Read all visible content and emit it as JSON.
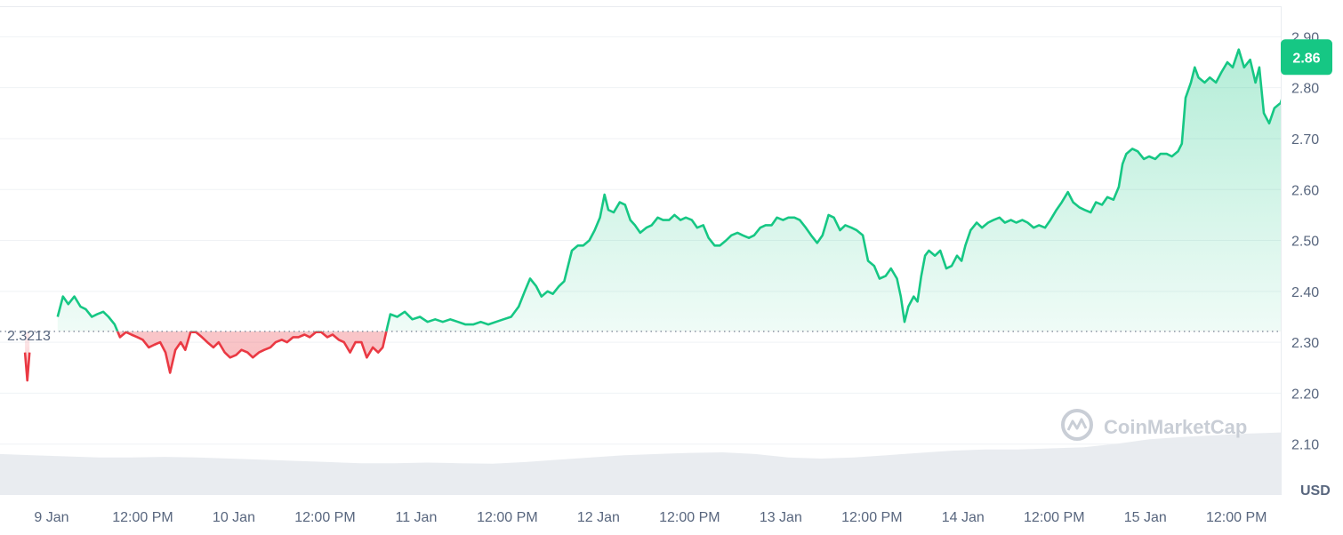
{
  "chart_data": {
    "type": "area",
    "unit": "USD",
    "baseline_label": "2.3213",
    "current_price_label": "2.86",
    "ylim": [
      2.0,
      2.96
    ],
    "yticks": [
      "2.10",
      "2.20",
      "2.30",
      "2.40",
      "2.50",
      "2.60",
      "2.70",
      "2.80",
      "2.90"
    ],
    "xticks": [
      {
        "label": "9 Jan",
        "t": 0
      },
      {
        "label": "12:00 PM",
        "t": 12
      },
      {
        "label": "10 Jan",
        "t": 24
      },
      {
        "label": "12:00 PM",
        "t": 36
      },
      {
        "label": "11 Jan",
        "t": 48
      },
      {
        "label": "12:00 PM",
        "t": 60
      },
      {
        "label": "12 Jan",
        "t": 72
      },
      {
        "label": "12:00 PM",
        "t": 84
      },
      {
        "label": "13 Jan",
        "t": 96
      },
      {
        "label": "12:00 PM",
        "t": 108
      },
      {
        "label": "14 Jan",
        "t": 120
      },
      {
        "label": "12:00 PM",
        "t": 132
      },
      {
        "label": "15 Jan",
        "t": 144
      },
      {
        "label": "12:00 PM",
        "t": 156
      }
    ],
    "series": [
      {
        "points": [
          [
            -3.5,
            2.28
          ],
          [
            -3.2,
            2.225
          ],
          [
            -2.9,
            2.28
          ],
          [
            0.8,
            2.35
          ],
          [
            1.5,
            2.39
          ],
          [
            2.2,
            2.375
          ],
          [
            3.0,
            2.39
          ],
          [
            3.8,
            2.37
          ],
          [
            4.5,
            2.365
          ],
          [
            5.3,
            2.35
          ],
          [
            6.0,
            2.355
          ],
          [
            6.8,
            2.36
          ],
          [
            7.5,
            2.35
          ],
          [
            8.3,
            2.335
          ],
          [
            9.0,
            2.31
          ],
          [
            9.8,
            2.32
          ],
          [
            10.5,
            2.315
          ],
          [
            11.3,
            2.31
          ],
          [
            12.0,
            2.305
          ],
          [
            12.8,
            2.29
          ],
          [
            13.5,
            2.295
          ],
          [
            14.3,
            2.3
          ],
          [
            15.0,
            2.28
          ],
          [
            15.6,
            2.24
          ],
          [
            16.3,
            2.285
          ],
          [
            17.0,
            2.3
          ],
          [
            17.6,
            2.285
          ],
          [
            18.3,
            2.32
          ],
          [
            19.0,
            2.32
          ],
          [
            19.8,
            2.31
          ],
          [
            20.5,
            2.3
          ],
          [
            21.3,
            2.29
          ],
          [
            22.0,
            2.3
          ],
          [
            22.8,
            2.28
          ],
          [
            23.5,
            2.27
          ],
          [
            24.3,
            2.275
          ],
          [
            25.0,
            2.285
          ],
          [
            25.8,
            2.28
          ],
          [
            26.5,
            2.27
          ],
          [
            27.3,
            2.28
          ],
          [
            28.0,
            2.285
          ],
          [
            28.8,
            2.29
          ],
          [
            29.5,
            2.3
          ],
          [
            30.3,
            2.305
          ],
          [
            31.0,
            2.3
          ],
          [
            31.8,
            2.31
          ],
          [
            32.5,
            2.31
          ],
          [
            33.3,
            2.315
          ],
          [
            34.0,
            2.31
          ],
          [
            34.8,
            2.32
          ],
          [
            35.5,
            2.32
          ],
          [
            36.3,
            2.31
          ],
          [
            37.0,
            2.315
          ],
          [
            37.8,
            2.305
          ],
          [
            38.5,
            2.3
          ],
          [
            39.3,
            2.28
          ],
          [
            40.0,
            2.3
          ],
          [
            40.8,
            2.3
          ],
          [
            41.5,
            2.27
          ],
          [
            42.3,
            2.29
          ],
          [
            43.0,
            2.28
          ],
          [
            43.6,
            2.29
          ],
          [
            44.2,
            2.33
          ],
          [
            44.6,
            2.355
          ],
          [
            45.5,
            2.35
          ],
          [
            46.5,
            2.36
          ],
          [
            47.5,
            2.345
          ],
          [
            48.5,
            2.35
          ],
          [
            49.5,
            2.34
          ],
          [
            50.5,
            2.345
          ],
          [
            51.5,
            2.34
          ],
          [
            52.5,
            2.345
          ],
          [
            53.5,
            2.34
          ],
          [
            54.5,
            2.335
          ],
          [
            55.5,
            2.335
          ],
          [
            56.5,
            2.34
          ],
          [
            57.5,
            2.335
          ],
          [
            58.5,
            2.34
          ],
          [
            59.5,
            2.345
          ],
          [
            60.5,
            2.35
          ],
          [
            61.5,
            2.37
          ],
          [
            62.3,
            2.4
          ],
          [
            63.0,
            2.425
          ],
          [
            63.8,
            2.41
          ],
          [
            64.5,
            2.39
          ],
          [
            65.3,
            2.4
          ],
          [
            66.0,
            2.395
          ],
          [
            66.8,
            2.41
          ],
          [
            67.5,
            2.42
          ],
          [
            68.0,
            2.45
          ],
          [
            68.5,
            2.48
          ],
          [
            69.3,
            2.49
          ],
          [
            70.0,
            2.49
          ],
          [
            70.8,
            2.5
          ],
          [
            71.5,
            2.52
          ],
          [
            72.2,
            2.545
          ],
          [
            72.8,
            2.59
          ],
          [
            73.3,
            2.56
          ],
          [
            74.0,
            2.555
          ],
          [
            74.8,
            2.575
          ],
          [
            75.5,
            2.57
          ],
          [
            76.2,
            2.54
          ],
          [
            76.8,
            2.53
          ],
          [
            77.5,
            2.515
          ],
          [
            78.3,
            2.525
          ],
          [
            79.0,
            2.53
          ],
          [
            79.8,
            2.545
          ],
          [
            80.5,
            2.54
          ],
          [
            81.3,
            2.54
          ],
          [
            82.0,
            2.55
          ],
          [
            82.8,
            2.54
          ],
          [
            83.5,
            2.545
          ],
          [
            84.3,
            2.54
          ],
          [
            85.0,
            2.525
          ],
          [
            85.8,
            2.53
          ],
          [
            86.5,
            2.505
          ],
          [
            87.3,
            2.49
          ],
          [
            88.0,
            2.49
          ],
          [
            88.8,
            2.5
          ],
          [
            89.5,
            2.51
          ],
          [
            90.3,
            2.515
          ],
          [
            91.0,
            2.51
          ],
          [
            91.8,
            2.505
          ],
          [
            92.5,
            2.51
          ],
          [
            93.3,
            2.525
          ],
          [
            94.0,
            2.53
          ],
          [
            94.8,
            2.53
          ],
          [
            95.5,
            2.545
          ],
          [
            96.3,
            2.54
          ],
          [
            97.0,
            2.545
          ],
          [
            97.8,
            2.545
          ],
          [
            98.5,
            2.54
          ],
          [
            99.3,
            2.525
          ],
          [
            100.0,
            2.51
          ],
          [
            100.8,
            2.495
          ],
          [
            101.5,
            2.51
          ],
          [
            102.3,
            2.55
          ],
          [
            103.0,
            2.545
          ],
          [
            103.8,
            2.52
          ],
          [
            104.5,
            2.53
          ],
          [
            105.3,
            2.525
          ],
          [
            106.0,
            2.52
          ],
          [
            106.8,
            2.51
          ],
          [
            107.5,
            2.46
          ],
          [
            108.3,
            2.45
          ],
          [
            109.0,
            2.425
          ],
          [
            109.8,
            2.43
          ],
          [
            110.5,
            2.445
          ],
          [
            111.3,
            2.425
          ],
          [
            111.8,
            2.39
          ],
          [
            112.3,
            2.34
          ],
          [
            112.8,
            2.37
          ],
          [
            113.5,
            2.39
          ],
          [
            114.0,
            2.38
          ],
          [
            114.5,
            2.43
          ],
          [
            115.0,
            2.47
          ],
          [
            115.5,
            2.48
          ],
          [
            116.3,
            2.47
          ],
          [
            117.0,
            2.48
          ],
          [
            117.8,
            2.445
          ],
          [
            118.5,
            2.45
          ],
          [
            119.2,
            2.47
          ],
          [
            119.8,
            2.46
          ],
          [
            120.3,
            2.49
          ],
          [
            121.0,
            2.52
          ],
          [
            121.8,
            2.535
          ],
          [
            122.5,
            2.525
          ],
          [
            123.3,
            2.535
          ],
          [
            124.0,
            2.54
          ],
          [
            124.8,
            2.545
          ],
          [
            125.5,
            2.535
          ],
          [
            126.3,
            2.54
          ],
          [
            127.0,
            2.535
          ],
          [
            127.8,
            2.54
          ],
          [
            128.5,
            2.535
          ],
          [
            129.3,
            2.525
          ],
          [
            130.0,
            2.53
          ],
          [
            130.8,
            2.525
          ],
          [
            131.5,
            2.54
          ],
          [
            132.3,
            2.56
          ],
          [
            133.0,
            2.575
          ],
          [
            133.8,
            2.595
          ],
          [
            134.5,
            2.575
          ],
          [
            135.3,
            2.565
          ],
          [
            136.0,
            2.56
          ],
          [
            136.8,
            2.555
          ],
          [
            137.5,
            2.575
          ],
          [
            138.3,
            2.57
          ],
          [
            139.0,
            2.585
          ],
          [
            139.8,
            2.58
          ],
          [
            140.5,
            2.605
          ],
          [
            141.0,
            2.65
          ],
          [
            141.5,
            2.67
          ],
          [
            142.3,
            2.68
          ],
          [
            143.0,
            2.675
          ],
          [
            143.8,
            2.66
          ],
          [
            144.5,
            2.665
          ],
          [
            145.3,
            2.66
          ],
          [
            146.0,
            2.67
          ],
          [
            146.8,
            2.67
          ],
          [
            147.5,
            2.665
          ],
          [
            148.3,
            2.675
          ],
          [
            148.8,
            2.69
          ],
          [
            149.3,
            2.78
          ],
          [
            150.0,
            2.81
          ],
          [
            150.5,
            2.84
          ],
          [
            151.0,
            2.82
          ],
          [
            151.8,
            2.81
          ],
          [
            152.5,
            2.82
          ],
          [
            153.3,
            2.81
          ],
          [
            154.0,
            2.83
          ],
          [
            154.8,
            2.85
          ],
          [
            155.5,
            2.84
          ],
          [
            156.3,
            2.875
          ],
          [
            157.0,
            2.84
          ],
          [
            157.8,
            2.855
          ],
          [
            158.5,
            2.81
          ],
          [
            159.0,
            2.84
          ],
          [
            159.6,
            2.75
          ],
          [
            160.3,
            2.73
          ],
          [
            161.0,
            2.76
          ],
          [
            161.8,
            2.77
          ],
          [
            162.5,
            2.8
          ],
          [
            163.0,
            2.845
          ],
          [
            163.6,
            2.86
          ]
        ]
      }
    ],
    "volume": [
      0.72,
      0.7,
      0.68,
      0.66,
      0.66,
      0.67,
      0.66,
      0.64,
      0.62,
      0.6,
      0.58,
      0.56,
      0.56,
      0.57,
      0.56,
      0.55,
      0.58,
      0.62,
      0.66,
      0.7,
      0.72,
      0.74,
      0.75,
      0.72,
      0.66,
      0.64,
      0.66,
      0.7,
      0.74,
      0.78,
      0.8,
      0.8,
      0.82,
      0.84,
      0.9,
      0.98,
      1.02,
      1.05,
      1.08,
      1.1
    ],
    "colors": {
      "up_line": "#16c784",
      "down_line": "#ea3943",
      "up_fill": "#16c784",
      "down_fill": "#ea3943",
      "grid": "#eff2f5",
      "baseline": "#8a93a3",
      "volume": "#e7eaee"
    }
  },
  "watermark": {
    "text": "CoinMarketCap",
    "icon": "coinmarketcap-logo-icon"
  }
}
